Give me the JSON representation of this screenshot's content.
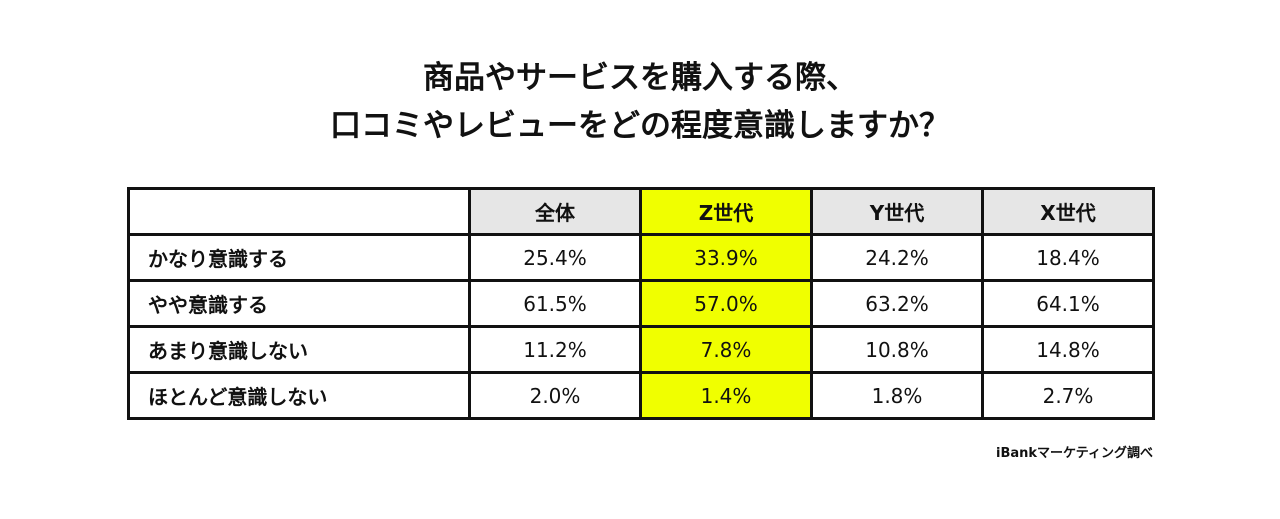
{
  "title_lines": [
    "商品やサービスを購入する際、",
    "口コミやレビューをどの程度意識しますか？"
  ],
  "source": "iBankマーケティング調べ",
  "colors": {
    "highlight": "#f0ff00",
    "header_bg": "#e6e6e6",
    "border": "#111111"
  },
  "chart_data": {
    "type": "table",
    "columns": [
      "全体",
      "Z世代",
      "Y世代",
      "X世代"
    ],
    "highlight_column": "Z世代",
    "rows": [
      {
        "label": "かなり意識する",
        "values": [
          "25.4%",
          "33.9%",
          "24.2%",
          "18.4%"
        ]
      },
      {
        "label": "やや意識する",
        "values": [
          "61.5%",
          "57.0%",
          "63.2%",
          "64.1%"
        ]
      },
      {
        "label": "あまり意識しない",
        "values": [
          "11.2%",
          "7.8%",
          "10.8%",
          "14.8%"
        ]
      },
      {
        "label": "ほとんど意識しない",
        "values": [
          "2.0%",
          "1.4%",
          "1.8%",
          "2.7%"
        ]
      }
    ]
  }
}
